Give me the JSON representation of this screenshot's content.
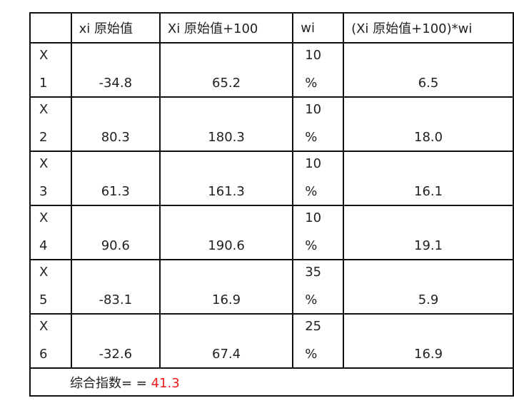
{
  "headers": [
    "",
    "xi 原始值",
    "Xi 原始值+100",
    "wi",
    "(Xi 原始值+100)*wi"
  ],
  "rows": [
    {
      "label_top": "X",
      "label_bottom": "1",
      "xi": "-34.8",
      "xi100": "65.2",
      "w_top": "10",
      "w_bottom": "%",
      "prod": "6.5"
    },
    {
      "label_top": "X",
      "label_bottom": "2",
      "xi": "80.3",
      "xi100": "180.3",
      "w_top": "10",
      "w_bottom": "%",
      "prod": "18.0"
    },
    {
      "label_top": "X",
      "label_bottom": "3",
      "xi": "61.3",
      "xi100": "161.3",
      "w_top": "10",
      "w_bottom": "%",
      "prod": "16.1"
    },
    {
      "label_top": "X",
      "label_bottom": "4",
      "xi": "90.6",
      "xi100": "190.6",
      "w_top": "10",
      "w_bottom": "%",
      "prod": "19.1"
    },
    {
      "label_top": "X",
      "label_bottom": "5",
      "xi": "-83.1",
      "xi100": "16.9",
      "w_top": "35",
      "w_bottom": "%",
      "prod": "5.9"
    },
    {
      "label_top": "X",
      "label_bottom": "6",
      "xi": "-32.6",
      "xi100": "67.4",
      "w_top": "25",
      "w_bottom": "%",
      "prod": "16.9"
    }
  ],
  "footer": {
    "label": "综合指数= = ",
    "value": "41.3",
    "value_color": "#f2191c"
  }
}
